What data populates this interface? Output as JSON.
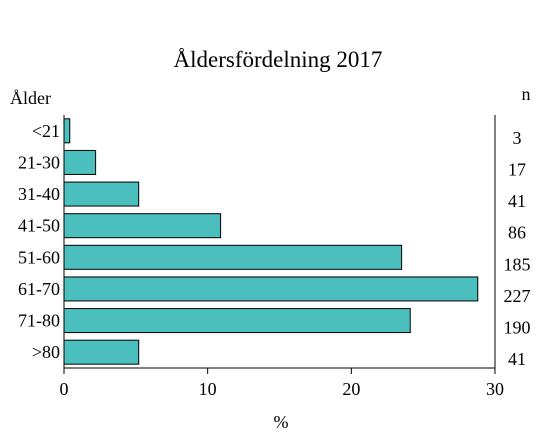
{
  "chart_data": {
    "type": "bar",
    "orientation": "horizontal",
    "title": "Åldersfördelning 2017",
    "ylabel": "Ålder",
    "xlabel": "%",
    "right_label": "n",
    "categories": [
      "<21",
      "21-30",
      "31-40",
      "41-50",
      "51-60",
      "61-70",
      "71-80",
      ">80"
    ],
    "values": [
      0.4,
      2.2,
      5.2,
      10.9,
      23.5,
      28.8,
      24.1,
      5.2
    ],
    "n_values": [
      "3",
      "17",
      "41",
      "86",
      "185",
      "227",
      "190",
      "41"
    ],
    "xlim": [
      0,
      30
    ],
    "xticks": [
      "0",
      "10",
      "20",
      "30"
    ],
    "bar_color": "#4BBFBD",
    "grid": false,
    "legend": "none"
  }
}
